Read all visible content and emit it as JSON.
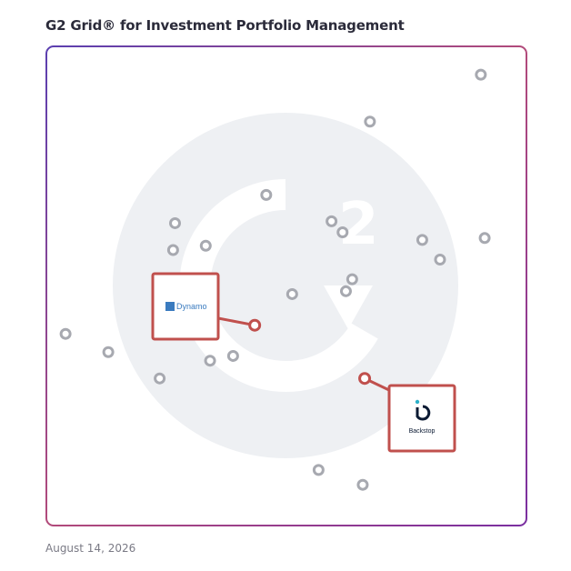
{
  "title": "G2 Grid® for Investment Portfolio Management",
  "date": "August 14, 2026",
  "colors": {
    "frame_top_left": "#5b3fb0",
    "frame_top_right": "#f0542d",
    "frame_bottom_left": "#1b9bd8",
    "frame_bottom_right": "#7a2fa0",
    "highlight": "#c0504d",
    "marker": "#a7a9b0",
    "watermark": "#eef0f3"
  },
  "chart_data": {
    "type": "scatter",
    "title": "G2 Grid® for Investment Portfolio Management",
    "xlabel": "",
    "ylabel": "",
    "xlim": [
      0,
      100
    ],
    "ylim": [
      0,
      100
    ],
    "grid": "quadrants",
    "points": [
      {
        "x": 90.5,
        "y": 94.1
      },
      {
        "x": 67.4,
        "y": 84.3
      },
      {
        "x": 45.8,
        "y": 69.0
      },
      {
        "x": 26.8,
        "y": 63.1
      },
      {
        "x": 59.4,
        "y": 63.5
      },
      {
        "x": 61.7,
        "y": 61.2
      },
      {
        "x": 33.2,
        "y": 58.4
      },
      {
        "x": 26.4,
        "y": 57.5
      },
      {
        "x": 78.3,
        "y": 59.6
      },
      {
        "x": 91.3,
        "y": 60.0
      },
      {
        "x": 82.0,
        "y": 55.5
      },
      {
        "x": 63.7,
        "y": 51.4
      },
      {
        "x": 62.4,
        "y": 48.9
      },
      {
        "x": 51.2,
        "y": 48.3
      },
      {
        "x": 4.0,
        "y": 40.0
      },
      {
        "x": 12.9,
        "y": 36.2
      },
      {
        "x": 34.1,
        "y": 34.4
      },
      {
        "x": 38.9,
        "y": 35.4
      },
      {
        "x": 23.6,
        "y": 30.7
      },
      {
        "x": 56.7,
        "y": 11.6
      },
      {
        "x": 65.9,
        "y": 8.5
      },
      {
        "x": 43.4,
        "y": 41.8,
        "label": "Dynamo"
      },
      {
        "x": 66.3,
        "y": 30.7,
        "label": "Backstop"
      }
    ]
  }
}
